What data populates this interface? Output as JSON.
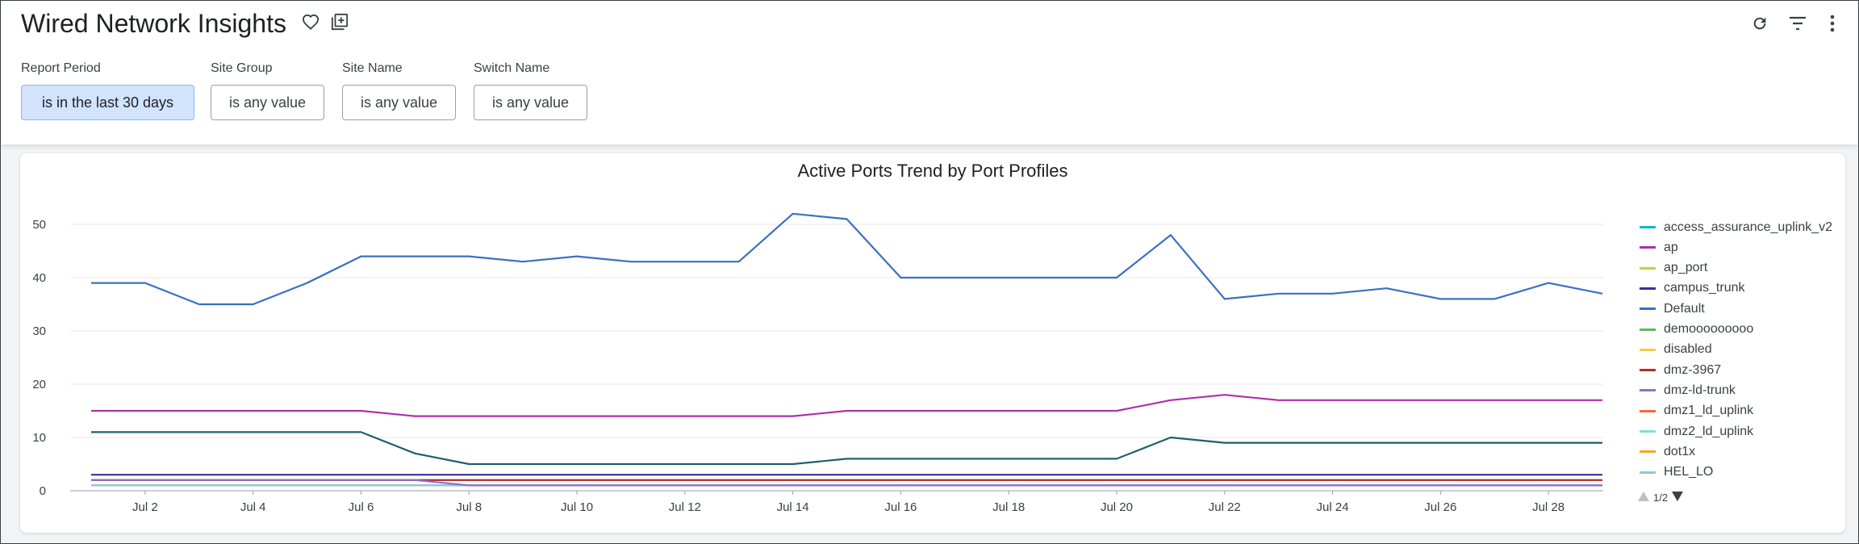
{
  "header": {
    "title": "Wired Network Insights",
    "icons": [
      "heart-outline-icon",
      "add-to-collection-icon",
      "refresh-icon",
      "filter-icon",
      "more-vert-icon"
    ]
  },
  "filters": [
    {
      "label": "Report Period",
      "value": "is in the last 30 days",
      "active": true
    },
    {
      "label": "Site Group",
      "value": "is any value",
      "active": false
    },
    {
      "label": "Site Name",
      "value": "is any value",
      "active": false
    },
    {
      "label": "Switch Name",
      "value": "is any value",
      "active": false
    }
  ],
  "chart_data": {
    "type": "line",
    "title": "Active Ports Trend by Port Profiles",
    "xlabel": "",
    "ylabel": "",
    "ylim": [
      0,
      55
    ],
    "y_ticks": [
      0,
      10,
      20,
      30,
      40,
      50
    ],
    "x": [
      "Jul 1",
      "Jul 2",
      "Jul 3",
      "Jul 4",
      "Jul 5",
      "Jul 6",
      "Jul 7",
      "Jul 8",
      "Jul 9",
      "Jul 10",
      "Jul 11",
      "Jul 12",
      "Jul 13",
      "Jul 14",
      "Jul 15",
      "Jul 16",
      "Jul 17",
      "Jul 18",
      "Jul 19",
      "Jul 20",
      "Jul 21",
      "Jul 22",
      "Jul 23",
      "Jul 24",
      "Jul 25",
      "Jul 26",
      "Jul 27",
      "Jul 28",
      "Jul 29"
    ],
    "x_tick_labels": [
      "Jul 2",
      "Jul 4",
      "Jul 6",
      "Jul 8",
      "Jul 10",
      "Jul 12",
      "Jul 14",
      "Jul 16",
      "Jul 18",
      "Jul 20",
      "Jul 22",
      "Jul 24",
      "Jul 26",
      "Jul 28"
    ],
    "grid": true,
    "legend_position": "right",
    "series": [
      {
        "name": "access_assurance_uplink_v2",
        "color": "#12b5cb",
        "values": [
          1,
          1,
          1,
          1,
          1,
          1,
          1,
          1,
          1,
          1,
          1,
          1,
          1,
          1,
          1,
          1,
          1,
          1,
          1,
          1,
          1,
          1,
          1,
          1,
          1,
          1,
          1,
          1,
          1
        ]
      },
      {
        "name": "ap",
        "color": "#b02fa8",
        "values": [
          15,
          15,
          15,
          15,
          15,
          15,
          14,
          14,
          14,
          14,
          14,
          14,
          14,
          14,
          15,
          15,
          15,
          15,
          15,
          15,
          17,
          18,
          17,
          17,
          17,
          17,
          17,
          17,
          17
        ]
      },
      {
        "name": "ap_port",
        "color": "#c5d136",
        "values": [
          2,
          2,
          2,
          2,
          2,
          2,
          2,
          2,
          2,
          2,
          2,
          2,
          2,
          2,
          2,
          2,
          2,
          2,
          2,
          2,
          2,
          2,
          2,
          2,
          2,
          2,
          2,
          2,
          2
        ]
      },
      {
        "name": "campus_trunk",
        "color": "#3a2fa0",
        "values": [
          3,
          3,
          3,
          3,
          3,
          3,
          3,
          3,
          3,
          3,
          3,
          3,
          3,
          3,
          3,
          3,
          3,
          3,
          3,
          3,
          3,
          3,
          3,
          3,
          3,
          3,
          3,
          3,
          3
        ]
      },
      {
        "name": "Default",
        "color": "#3b6fc4",
        "values": [
          39,
          39,
          35,
          35,
          39,
          44,
          44,
          44,
          43,
          44,
          43,
          43,
          43,
          52,
          51,
          40,
          40,
          40,
          40,
          40,
          48,
          36,
          37,
          37,
          38,
          36,
          36,
          39,
          37
        ]
      },
      {
        "name": "demooooooooo",
        "color": "#5fb85a",
        "values": [
          2,
          2,
          2,
          2,
          2,
          2,
          2,
          2,
          2,
          2,
          2,
          2,
          2,
          2,
          2,
          2,
          2,
          2,
          2,
          2,
          2,
          2,
          2,
          2,
          2,
          2,
          2,
          2,
          2
        ]
      },
      {
        "name": "disabled",
        "color": "#f2c94c",
        "values": [
          1,
          1,
          1,
          1,
          1,
          1,
          1,
          1,
          1,
          1,
          1,
          1,
          1,
          1,
          1,
          1,
          1,
          1,
          1,
          1,
          1,
          1,
          1,
          1,
          1,
          1,
          1,
          1,
          1
        ]
      },
      {
        "name": "dmz-3967",
        "color": "#c0282e",
        "values": [
          2,
          2,
          2,
          2,
          2,
          2,
          2,
          2,
          2,
          2,
          2,
          2,
          2,
          2,
          2,
          2,
          2,
          2,
          2,
          2,
          2,
          2,
          2,
          2,
          2,
          2,
          2,
          2,
          2
        ]
      },
      {
        "name": "dmz-ld-trunk",
        "color": "#8a6fd6",
        "values": [
          2,
          2,
          2,
          2,
          2,
          2,
          2,
          1,
          1,
          1,
          1,
          1,
          1,
          1,
          1,
          1,
          1,
          1,
          1,
          1,
          1,
          1,
          1,
          1,
          1,
          1,
          1,
          1,
          1
        ]
      },
      {
        "name": "dmz1_ld_uplink",
        "color": "#f26b3a",
        "values": [
          1,
          1,
          1,
          1,
          1,
          1,
          1,
          1,
          1,
          1,
          1,
          1,
          1,
          1,
          1,
          1,
          1,
          1,
          1,
          1,
          1,
          1,
          1,
          1,
          1,
          1,
          1,
          1,
          1
        ]
      },
      {
        "name": "dmz2_ld_uplink",
        "color": "#7fdede",
        "values": [
          1,
          1,
          1,
          1,
          1,
          1,
          1,
          1,
          1,
          1,
          1,
          1,
          1,
          1,
          1,
          1,
          1,
          1,
          1,
          1,
          1,
          1,
          1,
          1,
          1,
          1,
          1,
          1,
          1
        ]
      },
      {
        "name": "dot1x",
        "color": "#f5a623",
        "values": [
          1,
          1,
          1,
          1,
          1,
          1,
          1,
          1,
          1,
          1,
          1,
          1,
          1,
          1,
          1,
          1,
          1,
          1,
          1,
          1,
          1,
          1,
          1,
          1,
          1,
          1,
          1,
          1,
          1
        ]
      },
      {
        "name": "HEL_LO",
        "color": "#8fc7e0",
        "values": [
          1,
          1,
          1,
          1,
          1,
          1,
          1,
          1,
          1,
          1,
          1,
          1,
          1,
          1,
          1,
          1,
          1,
          1,
          1,
          1,
          1,
          1,
          1,
          1,
          1,
          1,
          1,
          1,
          1
        ]
      },
      {
        "name": "",
        "color": "#1f5f6b",
        "values": [
          11,
          11,
          11,
          11,
          11,
          11,
          7,
          5,
          5,
          5,
          5,
          5,
          5,
          5,
          6,
          6,
          6,
          6,
          6,
          6,
          10,
          9,
          9,
          9,
          9,
          9,
          9,
          9,
          9
        ]
      }
    ]
  },
  "legend_pager": {
    "label": "1/2"
  }
}
